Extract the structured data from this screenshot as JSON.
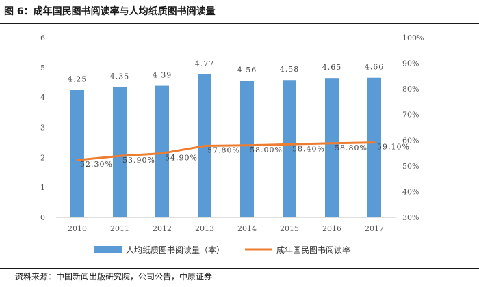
{
  "title": "图 6：成年国民图书阅读率与人均纸质图书阅读量",
  "source": "资料来源：中国新闻出版研究院，公司公告，中原证券",
  "chart_data": {
    "type": "bar",
    "categories": [
      "2010",
      "2011",
      "2012",
      "2013",
      "2014",
      "2015",
      "2016",
      "2017"
    ],
    "series": [
      {
        "name": "人均纸质图书阅读量（本）",
        "type": "bar",
        "axis": "left",
        "values": [
          4.25,
          4.35,
          4.39,
          4.77,
          4.56,
          4.58,
          4.65,
          4.66
        ],
        "labels": [
          "4.25",
          "4.35",
          "4.39",
          "4.77",
          "4.56",
          "4.58",
          "4.65",
          "4.66"
        ],
        "color": "#5b9bd5"
      },
      {
        "name": "成年国民图书阅读率",
        "type": "line",
        "axis": "right",
        "values": [
          52.3,
          53.9,
          54.9,
          57.8,
          58.0,
          58.4,
          58.8,
          59.1
        ],
        "labels": [
          "52.30%",
          "53.90%",
          "54.90%",
          "57.80%",
          "58.00%",
          "58.40%",
          "58.80%",
          "59.10%"
        ],
        "color": "#ed7d31"
      }
    ],
    "y_left": {
      "min": 0,
      "max": 6,
      "step": 1,
      "ticks": [
        "0",
        "1",
        "2",
        "3",
        "4",
        "5",
        "6"
      ]
    },
    "y_right": {
      "min": 30,
      "max": 100,
      "step": 10,
      "ticks": [
        "30%",
        "40%",
        "50%",
        "60%",
        "70%",
        "80%",
        "90%",
        "100%"
      ]
    },
    "grid": false,
    "legend_position": "bottom"
  }
}
